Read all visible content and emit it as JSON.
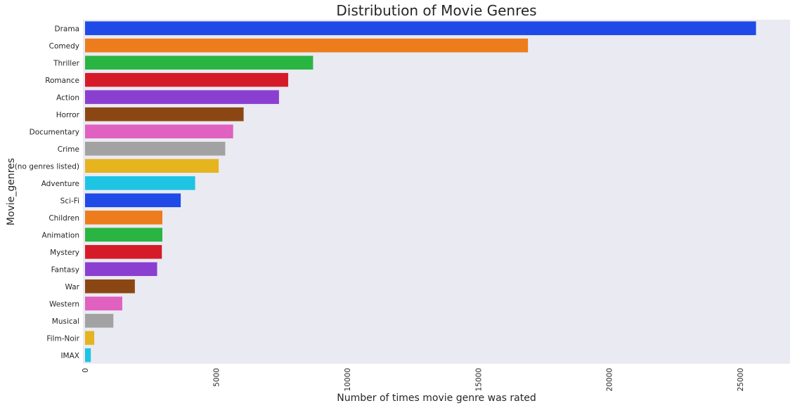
{
  "chart_data": {
    "type": "bar",
    "orientation": "horizontal",
    "title": "Distribution of Movie Genres",
    "xlabel": "Number of times movie genre was rated",
    "ylabel": "Movie_genres",
    "xlim": [
      0,
      26900
    ],
    "xticks": [
      0,
      5000,
      10000,
      15000,
      20000,
      25000
    ],
    "grid": false,
    "categories": [
      "Drama",
      "Comedy",
      "Thriller",
      "Romance",
      "Action",
      "Horror",
      "Documentary",
      "Crime",
      "(no genres listed)",
      "Adventure",
      "Sci-Fi",
      "Children",
      "Animation",
      "Mystery",
      "Fantasy",
      "War",
      "Western",
      "Musical",
      "Film-Noir",
      "IMAX"
    ],
    "values": [
      25600,
      16900,
      8700,
      7750,
      7400,
      6050,
      5650,
      5350,
      5100,
      4200,
      3650,
      2950,
      2950,
      2930,
      2750,
      1900,
      1420,
      1080,
      350,
      220
    ],
    "colors": [
      "#1f4ae8",
      "#ed7d1c",
      "#2ab542",
      "#d51b27",
      "#8b3fd0",
      "#8b4713",
      "#e061bf",
      "#a2a2a2",
      "#e5b41f",
      "#1ec4e3",
      "#1f4ae8",
      "#ed7d1c",
      "#2ab542",
      "#d51b27",
      "#8b3fd0",
      "#8b4713",
      "#e061bf",
      "#a2a2a2",
      "#e5b41f",
      "#1ec4e3"
    ],
    "plot_background": "#eaeaf2"
  }
}
